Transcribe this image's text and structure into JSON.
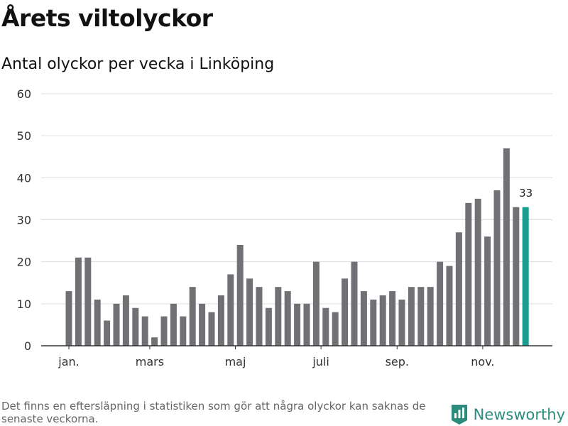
{
  "title": "Årets viltolyckor",
  "subtitle": "Antal olyckor per vecka i Linköping",
  "footnote": "Det finns en eftersläpning i statistiken som gör att några olyckor kan saknas de senaste veckorna.",
  "brand": {
    "name": "Newsworthy",
    "icon": "newsworthy-logo-icon",
    "color": "#2b8c7e"
  },
  "chart_data": {
    "type": "bar",
    "title": "Årets viltolyckor",
    "subtitle": "Antal olyckor per vecka i Linköping",
    "xlabel": "",
    "ylabel": "",
    "ylim": [
      0,
      60
    ],
    "yticks": [
      0,
      10,
      20,
      30,
      40,
      50,
      60
    ],
    "grid": true,
    "month_labels": [
      {
        "label": "jan.",
        "week": 1
      },
      {
        "label": "mars",
        "week": 9.5
      },
      {
        "label": "maj",
        "week": 18.5
      },
      {
        "label": "juli",
        "week": 27.5
      },
      {
        "label": "sep.",
        "week": 35.5
      },
      {
        "label": "nov.",
        "week": 44.5
      }
    ],
    "values": [
      13,
      21,
      21,
      11,
      6,
      10,
      12,
      9,
      7,
      2,
      7,
      10,
      7,
      14,
      10,
      8,
      12,
      17,
      24,
      16,
      14,
      9,
      14,
      13,
      10,
      10,
      20,
      9,
      8,
      16,
      20,
      13,
      11,
      12,
      13,
      11,
      14,
      14,
      14,
      20,
      19,
      27,
      34,
      35,
      26,
      37,
      47,
      33,
      33
    ],
    "bar_color": "#717075",
    "highlight_color": "#1a9e8f",
    "highlight_index": 48,
    "highlight_label": "33"
  }
}
